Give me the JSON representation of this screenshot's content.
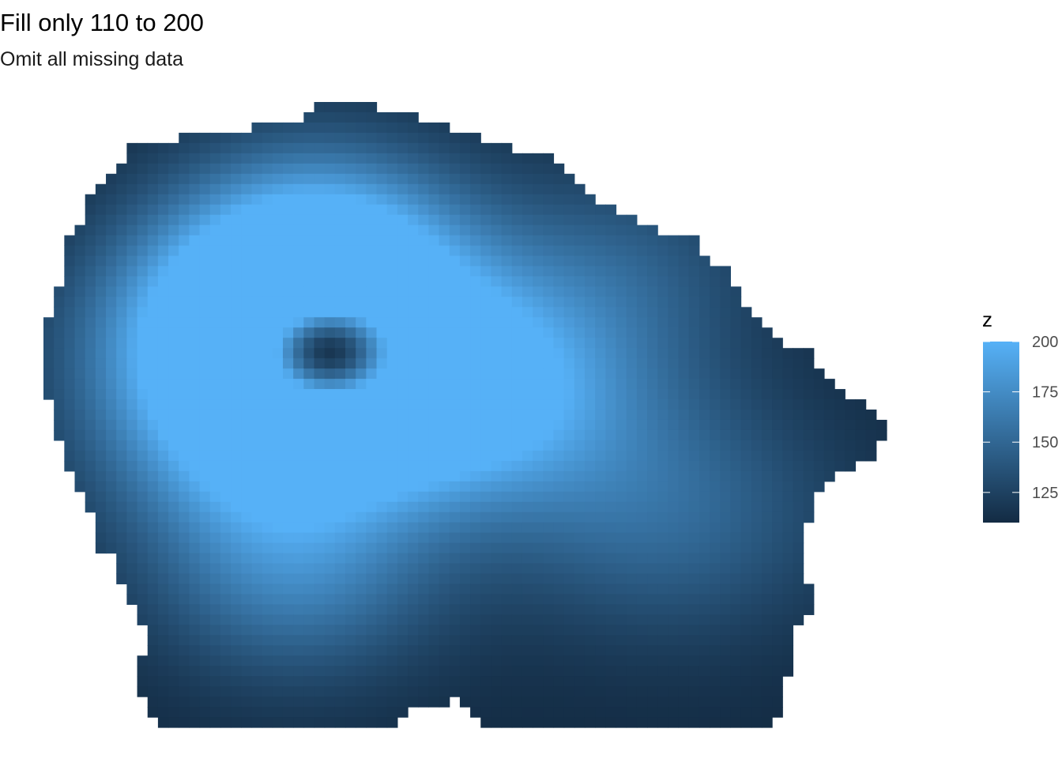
{
  "chart_data": {
    "type": "heatmap",
    "title": "Fill only 110 to 200",
    "subtitle": "Omit all missing data",
    "xlabel": "",
    "ylabel": "",
    "grid": false,
    "axes_visible": false,
    "fill_limits": [
      110,
      200
    ],
    "colors": {
      "low": "#132B43",
      "high": "#56B1F7"
    },
    "legend": {
      "title": "z",
      "position": "right",
      "ticks": [
        "200",
        "175",
        "150",
        "125"
      ],
      "tick_values": [
        200,
        175,
        150,
        125
      ]
    },
    "grid_size": {
      "cols": 81,
      "rows": 61
    },
    "surface_description": "Irregular blob-shaped region; values near 110 at the edges, a bright ridge near 200 on the left-center, a dark depression inside it, and a secondary moderate peak around 165 right of center.",
    "peaks": [
      {
        "x": 0.26,
        "y": 0.52,
        "value": 200,
        "spread": 0.13
      },
      {
        "x": 0.22,
        "y": 0.36,
        "value": 185,
        "spread": 0.12
      },
      {
        "x": 0.34,
        "y": 0.27,
        "value": 182,
        "spread": 0.12
      },
      {
        "x": 0.43,
        "y": 0.45,
        "value": 175,
        "spread": 0.12
      },
      {
        "x": 0.55,
        "y": 0.47,
        "value": 168,
        "spread": 0.13
      },
      {
        "x": 0.74,
        "y": 0.66,
        "value": 150,
        "spread": 0.14
      },
      {
        "x": 0.68,
        "y": 0.27,
        "value": 140,
        "spread": 0.12
      },
      {
        "x": 0.32,
        "y": 0.22,
        "value": 150,
        "spread": 0.12
      },
      {
        "x": 0.3,
        "y": 0.76,
        "value": 160,
        "spread": 0.12
      }
    ],
    "dips": [
      {
        "x": 0.34,
        "y": 0.4,
        "value": 118,
        "spread": 0.06
      }
    ]
  }
}
